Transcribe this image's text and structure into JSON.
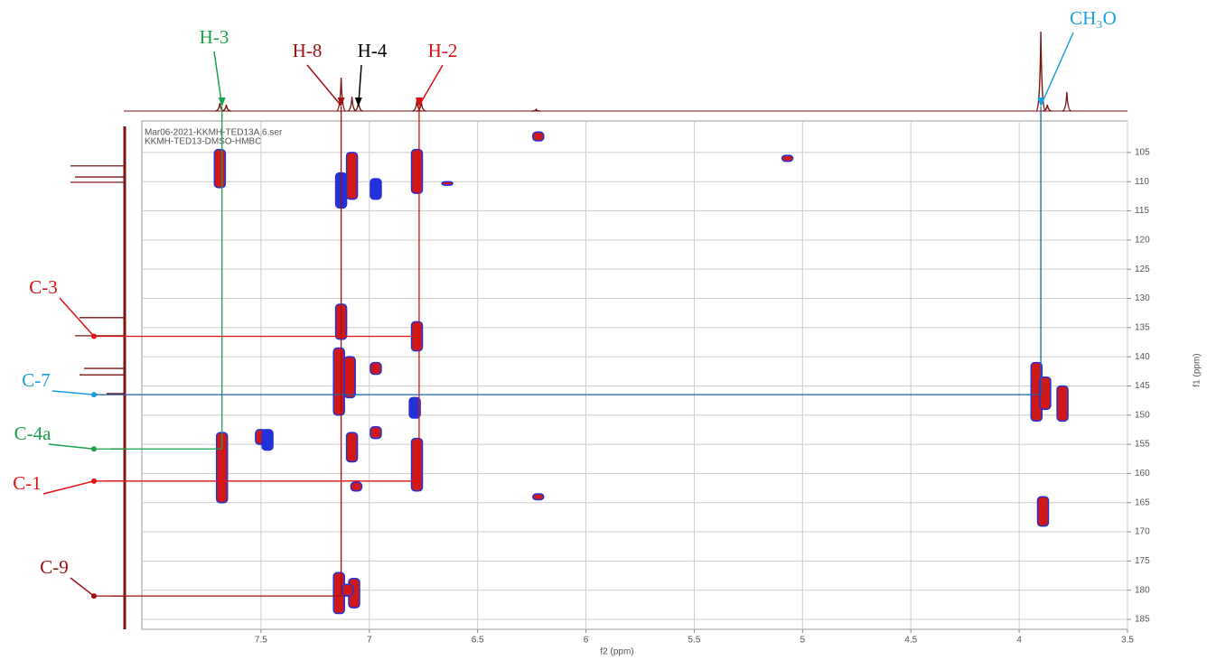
{
  "chart_data": {
    "type": "hmbc",
    "x_label": "f2 (ppm)",
    "y_label": "f1 (ppm)",
    "notes": [
      "Mar06-2021-KKMH-TED13A.6.ser",
      "KKMH-TED13-DMSO-HMBC"
    ],
    "xlim": [
      8.05,
      3.5
    ],
    "ylim": [
      99.6,
      186.7
    ],
    "xticks": [
      7.5,
      7.0,
      6.5,
      6.0,
      5.5,
      5.0,
      4.5,
      4.0,
      3.5
    ],
    "yticks": [
      105,
      110,
      115,
      120,
      125,
      130,
      135,
      140,
      145,
      150,
      155,
      160,
      165,
      170,
      175,
      180,
      185
    ],
    "grid": true,
    "outline_color": "#2232d8",
    "peaks": [
      {
        "x": 7.69,
        "f1": [
          104.5,
          111
        ],
        "color": "#d01818"
      },
      {
        "x": 7.68,
        "f1": [
          153,
          165
        ],
        "color": "#d01818"
      },
      {
        "x": 7.13,
        "f1": [
          108.5,
          114.5
        ],
        "color": "#2232d8"
      },
      {
        "x": 7.08,
        "f1": [
          105,
          113
        ],
        "color": "#d01818"
      },
      {
        "x": 6.97,
        "f1": [
          109.5,
          113
        ],
        "color": "#2232d8"
      },
      {
        "x": 6.78,
        "f1": [
          104.5,
          112
        ],
        "color": "#d01818"
      },
      {
        "x": 6.64,
        "f1": [
          110,
          110.6
        ],
        "color": "#d01818"
      },
      {
        "x": 7.13,
        "f1": [
          131,
          137
        ],
        "color": "#d01818"
      },
      {
        "x": 6.78,
        "f1": [
          134,
          139
        ],
        "color": "#d01818"
      },
      {
        "x": 7.14,
        "f1": [
          138.5,
          150
        ],
        "color": "#d01818"
      },
      {
        "x": 7.09,
        "f1": [
          140,
          147
        ],
        "color": "#d01818"
      },
      {
        "x": 6.97,
        "f1": [
          141,
          143
        ],
        "color": "#d01818"
      },
      {
        "x": 6.79,
        "f1": [
          147,
          150.5
        ],
        "color": "#2232d8"
      },
      {
        "x": 7.5,
        "f1": [
          152.5,
          155
        ],
        "color": "#d01818"
      },
      {
        "x": 7.47,
        "f1": [
          152.5,
          156
        ],
        "color": "#2232d8"
      },
      {
        "x": 6.97,
        "f1": [
          152,
          154
        ],
        "color": "#d01818"
      },
      {
        "x": 7.08,
        "f1": [
          153,
          158
        ],
        "color": "#d01818"
      },
      {
        "x": 6.78,
        "f1": [
          154,
          163
        ],
        "color": "#d01818"
      },
      {
        "x": 7.06,
        "f1": [
          161.5,
          163
        ],
        "color": "#d01818"
      },
      {
        "x": 6.22,
        "f1": [
          101.5,
          103
        ],
        "color": "#d01818"
      },
      {
        "x": 6.22,
        "f1": [
          163.5,
          164.5
        ],
        "color": "#d01818"
      },
      {
        "x": 5.07,
        "f1": [
          105.5,
          106.5
        ],
        "color": "#d01818"
      },
      {
        "x": 3.92,
        "f1": [
          141,
          151
        ],
        "color": "#d01818"
      },
      {
        "x": 3.88,
        "f1": [
          143.5,
          149
        ],
        "color": "#d01818"
      },
      {
        "x": 3.8,
        "f1": [
          145,
          151
        ],
        "color": "#d01818"
      },
      {
        "x": 3.89,
        "f1": [
          164,
          169
        ],
        "color": "#d01818"
      },
      {
        "x": 7.14,
        "f1": [
          177,
          184
        ],
        "color": "#d01818"
      },
      {
        "x": 7.07,
        "f1": [
          178,
          183
        ],
        "color": "#d01818"
      },
      {
        "x": 7.1,
        "f1": [
          179,
          181
        ],
        "color": "#d01818"
      }
    ],
    "f2_projection": {
      "x": [
        7.69,
        7.66,
        7.13,
        7.08,
        7.05,
        6.78,
        6.76,
        6.23,
        3.9,
        3.87,
        3.78
      ],
      "intensity": [
        10,
        8,
        42,
        18,
        12,
        14,
        12,
        2,
        100,
        8,
        24
      ]
    },
    "f1_projection": {
      "y": [
        107.3,
        109.2,
        110.1,
        133.3,
        136.4,
        142.0,
        143.1,
        146.3,
        155.8,
        161.3,
        181.0
      ],
      "intensity": [
        60,
        55,
        60,
        50,
        55,
        45,
        50,
        20,
        15,
        20,
        15
      ]
    },
    "proton_labels": [
      {
        "text": "H-3",
        "x": 7.68,
        "to_f1": 155.8,
        "color": "#1aa04a"
      },
      {
        "text": "H-8",
        "x": 7.13,
        "to_f1": 181.0,
        "color": "#a01010"
      },
      {
        "text": "H-4",
        "x": 7.05,
        "color": "#000000"
      },
      {
        "text": "H-2",
        "x": 6.77,
        "to_f1": 161.3,
        "color": "#e01010"
      },
      {
        "text": "CH₃O",
        "x": 3.9,
        "to_f1": 146.5,
        "color": "#19a0e0"
      }
    ],
    "carbon_labels": [
      {
        "text": "C-3",
        "f1": 136.5,
        "to_x": 6.77,
        "color": "#e01010"
      },
      {
        "text": "C-7",
        "f1": 146.5,
        "to_x": 3.9,
        "color": "#19a0e0"
      },
      {
        "text": "C-4a",
        "f1": 155.8,
        "to_x": 7.68,
        "color": "#1aa04a"
      },
      {
        "text": "C-1",
        "f1": 161.3,
        "to_x": 6.77,
        "color": "#e01010"
      },
      {
        "text": "C-9",
        "f1": 181.0,
        "to_x": 7.13,
        "color": "#a01010"
      }
    ]
  }
}
